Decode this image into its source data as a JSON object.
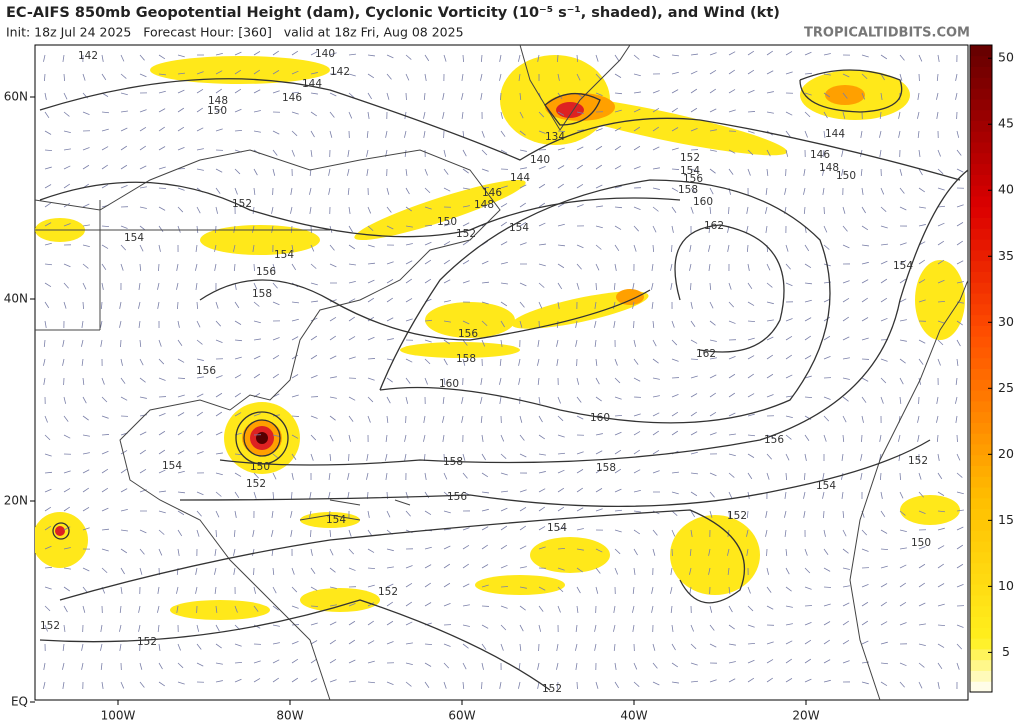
{
  "header": {
    "title": "EC-AIFS 850mb Geopotential Height (dam), Cyclonic Vorticity (10⁻⁵ s⁻¹, shaded), and Wind (kt)",
    "subtitle": "Init: 18z Jul 24 2025   Forecast Hour: [360]   valid at 18z Fri, Aug 08 2025",
    "site": "TROPICALTIDBITS.COM"
  },
  "map": {
    "lat_labels": [
      "60N",
      "40N",
      "20N",
      "EQ"
    ],
    "lon_labels": [
      "100W",
      "80W",
      "60W",
      "40W",
      "20W"
    ],
    "contour_labels": [
      140,
      142,
      142,
      144,
      146,
      148,
      150,
      134,
      140,
      144,
      146,
      148,
      150,
      152,
      154,
      152,
      154,
      154,
      156,
      158,
      156,
      158,
      160,
      162,
      162,
      144,
      146,
      148,
      150,
      152,
      154,
      156,
      158,
      160,
      156,
      154,
      150,
      152,
      158,
      156,
      158,
      160,
      156,
      154,
      152,
      154,
      154,
      152,
      150,
      152,
      152,
      152,
      152,
      154
    ]
  },
  "colorbar": {
    "range": [
      2,
      51
    ],
    "ticks": [
      5,
      10,
      15,
      20,
      25,
      30,
      35,
      40,
      45,
      50
    ]
  }
}
